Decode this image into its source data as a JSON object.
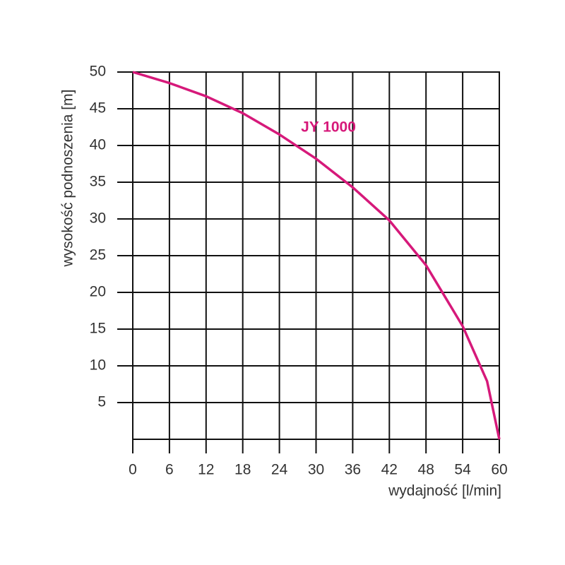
{
  "chart_data": {
    "type": "line",
    "x_label": "wydajność [l/min]",
    "y_label": "wysokość podnoszenia [m]",
    "series": [
      {
        "name": "JY 1000",
        "color": "#d6197a",
        "x": [
          0,
          6,
          12,
          18,
          24,
          30,
          36,
          42,
          48,
          54,
          58,
          60
        ],
        "values": [
          50,
          48.5,
          46.7,
          44.4,
          41.5,
          38.2,
          34.3,
          29.8,
          23.7,
          15.4,
          7.9,
          0
        ]
      }
    ],
    "xlim": [
      0,
      60
    ],
    "xticks": [
      0,
      6,
      12,
      18,
      24,
      30,
      36,
      42,
      48,
      54,
      60
    ],
    "ylim": [
      0,
      50
    ],
    "yticks": [
      5,
      10,
      15,
      20,
      25,
      30,
      35,
      40,
      45,
      50
    ],
    "grid": true
  }
}
